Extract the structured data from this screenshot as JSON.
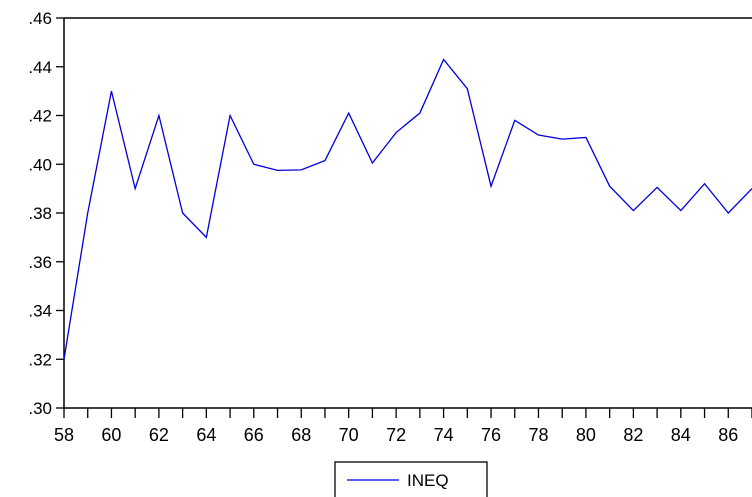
{
  "chart_data": {
    "type": "line",
    "title": "",
    "xlabel": "",
    "ylabel": "",
    "x": [
      58,
      59,
      60,
      61,
      62,
      63,
      64,
      65,
      66,
      67,
      68,
      69,
      70,
      71,
      72,
      73,
      74,
      75,
      76,
      77,
      78,
      79,
      80,
      81,
      82,
      83,
      84,
      85,
      86,
      87
    ],
    "x_tick_labels": [
      "58",
      "60",
      "62",
      "64",
      "66",
      "68",
      "70",
      "72",
      "74",
      "76",
      "78",
      "80",
      "82",
      "84",
      "86"
    ],
    "x_tick_values": [
      58,
      60,
      62,
      64,
      66,
      68,
      70,
      72,
      74,
      76,
      78,
      80,
      82,
      84,
      86
    ],
    "y_tick_labels": [
      ".30",
      ".32",
      ".34",
      ".36",
      ".38",
      ".40",
      ".42",
      ".44",
      ".46"
    ],
    "y_tick_values": [
      0.3,
      0.32,
      0.34,
      0.36,
      0.38,
      0.4,
      0.42,
      0.44,
      0.46
    ],
    "xlim": [
      58,
      87
    ],
    "ylim": [
      0.3,
      0.46
    ],
    "grid": false,
    "legend_position": "bottom-center",
    "series": [
      {
        "name": "INEQ",
        "color": "#0000dd",
        "values": [
          0.32,
          0.38,
          0.43,
          0.39,
          0.42,
          0.38,
          0.37,
          0.42,
          0.4,
          0.3975,
          0.3977,
          0.4015,
          0.421,
          0.4005,
          0.413,
          0.421,
          0.443,
          0.431,
          0.391,
          0.418,
          0.412,
          0.4103,
          0.411,
          0.391,
          0.381,
          0.3905,
          0.381,
          0.392,
          0.38,
          0.39
        ]
      }
    ]
  }
}
